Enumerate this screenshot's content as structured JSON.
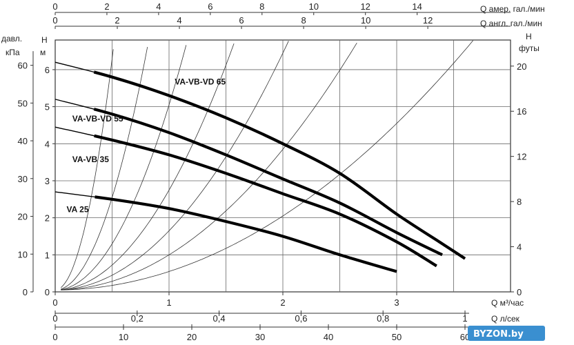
{
  "chart_data": {
    "type": "line",
    "x_axis": {
      "label": "Q м³/час",
      "range": [
        0,
        4
      ],
      "ticks": [
        0,
        1,
        2,
        3
      ]
    },
    "y_axis_m": {
      "label_top": "H",
      "label_bottom": "м",
      "range": [
        0,
        6.8
      ],
      "ticks": [
        0,
        1,
        2,
        3,
        4,
        5,
        6
      ]
    },
    "y_axis_kpa": {
      "label_top": "давл.",
      "label_bottom": "кПа",
      "ticks": [
        0,
        10,
        20,
        30,
        40,
        50,
        60
      ]
    },
    "y_axis_ft": {
      "label_top": "H",
      "label_bottom": "футы",
      "ticks": [
        0,
        4,
        8,
        12,
        16,
        20
      ]
    },
    "top_axis_us": {
      "label": "Q амер. гал./мин",
      "ticks": [
        0,
        2,
        4,
        6,
        8,
        10,
        12,
        14
      ]
    },
    "top_axis_uk": {
      "label": "Q англ. гал./мин",
      "ticks": [
        0,
        2,
        4,
        6,
        8,
        10,
        12
      ]
    },
    "bottom_axis_ls": {
      "label": "Q л/сек",
      "ticks": [
        "0",
        "0,2",
        "0,4",
        "0,6",
        "0,8",
        "1"
      ]
    },
    "bottom_axis_lmin": {
      "label": "Q л/мин",
      "ticks": [
        0,
        10,
        20,
        30,
        40,
        50,
        60
      ]
    },
    "grid": true,
    "system_curve_coefficients": [
      25,
      10,
      5,
      2.7,
      1.6,
      0.95,
      0.5
    ],
    "series": [
      {
        "name": "VA-VB-VD 65",
        "x": [
          0,
          0.5,
          1,
          1.5,
          2,
          2.5,
          3,
          3.4,
          3.6
        ],
        "y": [
          6.2,
          5.8,
          5.3,
          4.7,
          4.0,
          3.2,
          2.1,
          1.3,
          0.9
        ],
        "label_at": [
          1.05,
          5.6
        ]
      },
      {
        "name": "VA-VB-VD 55",
        "x": [
          0,
          0.5,
          1,
          1.5,
          2,
          2.5,
          3,
          3.4
        ],
        "y": [
          5.2,
          4.8,
          4.3,
          3.7,
          3.05,
          2.4,
          1.6,
          1.0
        ],
        "label_at": [
          0.15,
          4.6
        ]
      },
      {
        "name": "VA-VB 35",
        "x": [
          0,
          0.5,
          1,
          1.5,
          2,
          2.5,
          3,
          3.35
        ],
        "y": [
          4.45,
          4.1,
          3.7,
          3.2,
          2.65,
          2.1,
          1.35,
          0.7
        ],
        "label_at": [
          0.15,
          3.5
        ]
      },
      {
        "name": "VA 25",
        "x": [
          0,
          0.5,
          1,
          1.5,
          2,
          2.5,
          3
        ],
        "y": [
          2.7,
          2.5,
          2.25,
          1.9,
          1.5,
          1.0,
          0.55
        ],
        "label_at": [
          0.1,
          2.15
        ]
      }
    ]
  },
  "watermark": {
    "text": "BYZON.by",
    "bg": "#3a8fd0"
  },
  "colors": {
    "curve": "#000000",
    "grid": "#555555",
    "system": "#333333"
  }
}
